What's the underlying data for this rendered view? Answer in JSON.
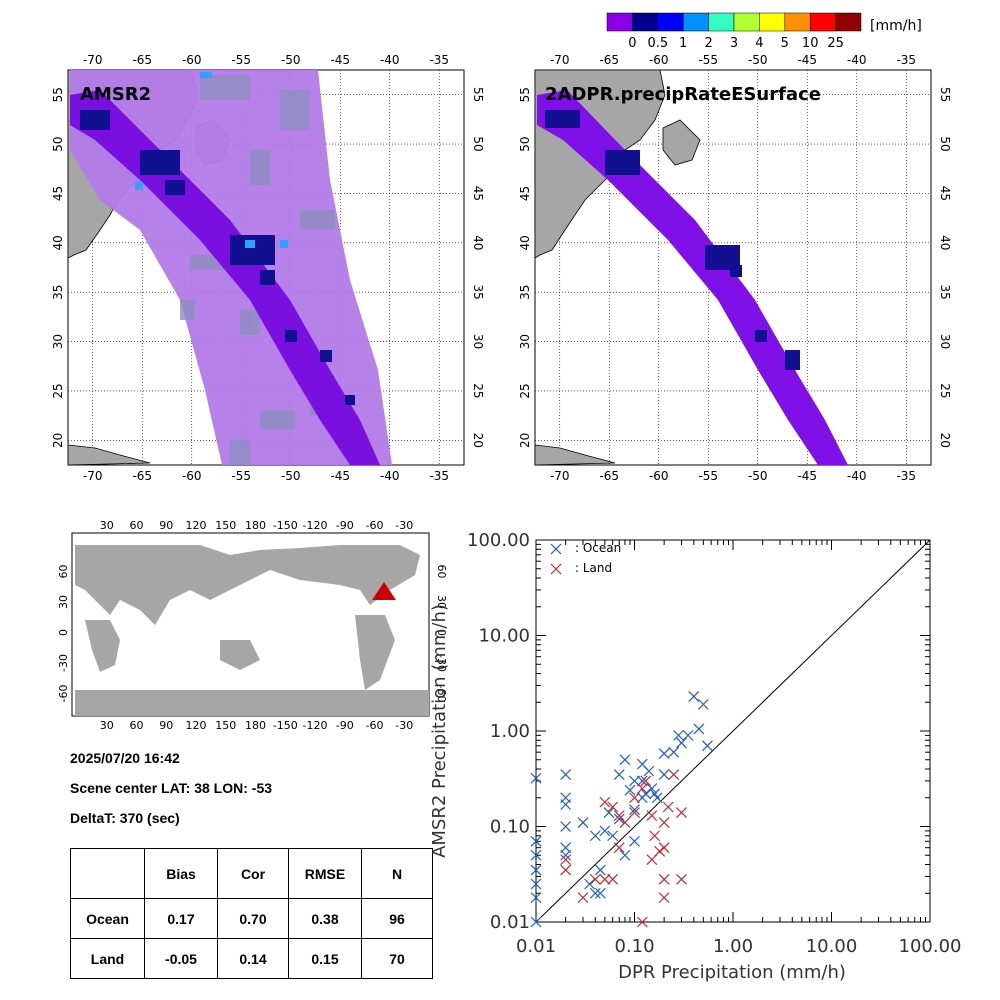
{
  "colorbar": {
    "unit": "[mm/h]",
    "labels": [
      "0",
      "0.5",
      "1",
      "2",
      "3",
      "4",
      "5",
      "10",
      "25"
    ],
    "colors": [
      "#8a00e6",
      "#000090",
      "#0000ff",
      "#0090ff",
      "#30ffc0",
      "#b0ff30",
      "#ffff00",
      "#ff9000",
      "#ff0000",
      "#900000"
    ]
  },
  "maps": [
    {
      "title": "AMSR2",
      "lon_ticks": [
        "-70",
        "-65",
        "-60",
        "-55",
        "-50",
        "-45",
        "-40",
        "-35"
      ],
      "lat_ticks": [
        "20",
        "25",
        "30",
        "35",
        "40",
        "45",
        "50",
        "55"
      ]
    },
    {
      "title": "2ADPR.precipRateESurface",
      "lon_ticks": [
        "-70",
        "-65",
        "-60",
        "-55",
        "-50",
        "-45",
        "-40",
        "-35"
      ],
      "lat_ticks": [
        "20",
        "25",
        "30",
        "35",
        "40",
        "45",
        "50",
        "55"
      ]
    }
  ],
  "world_map": {
    "lon_ticks": [
      "30",
      "60",
      "90",
      "120",
      "150",
      "180",
      "-150",
      "-120",
      "-90",
      "-60",
      "-30"
    ],
    "lat_ticks": [
      "60",
      "30",
      "0",
      "-30",
      "-60"
    ],
    "marker_color": "#cc0000"
  },
  "info": {
    "datetime": "2025/07/20 16:42",
    "scene_center": "Scene center LAT: 38   LON: -53",
    "deltat": "DeltaT:  370 (sec)"
  },
  "stats_table": {
    "headers": [
      "",
      "Bias",
      "Cor",
      "RMSE",
      "N"
    ],
    "rows": [
      {
        "label": "Ocean",
        "bias": "0.17",
        "cor": "0.70",
        "rmse": "0.38",
        "n": "96"
      },
      {
        "label": "Land",
        "bias": "-0.05",
        "cor": "0.14",
        "rmse": "0.15",
        "n": "70"
      }
    ]
  },
  "chart_data": {
    "type": "scatter",
    "xlabel": "DPR Precipitation (mm/h)",
    "ylabel": "AMSR2 Precipitation (mm/h)",
    "xscale": "log",
    "yscale": "log",
    "xlim": [
      0.01,
      100
    ],
    "ylim": [
      0.01,
      100
    ],
    "x_tick_labels": [
      "0.01",
      "0.10",
      "1.00",
      "10.00",
      "100.00"
    ],
    "y_tick_labels": [
      "0.01",
      "0.10",
      "1.00",
      "10.00",
      "100.00"
    ],
    "diagonal": true,
    "legend_position": "top-left",
    "series": [
      {
        "name": ": Ocean",
        "color": "#1a5ad6",
        "marker": "x",
        "points": [
          [
            0.01,
            0.32
          ],
          [
            0.01,
            0.07
          ],
          [
            0.01,
            0.05
          ],
          [
            0.01,
            0.035
          ],
          [
            0.01,
            0.025
          ],
          [
            0.01,
            0.018
          ],
          [
            0.01,
            0.01
          ],
          [
            0.02,
            0.35
          ],
          [
            0.02,
            0.2
          ],
          [
            0.02,
            0.17
          ],
          [
            0.02,
            0.1
          ],
          [
            0.02,
            0.06
          ],
          [
            0.02,
            0.05
          ],
          [
            0.03,
            0.11
          ],
          [
            0.035,
            0.025
          ],
          [
            0.04,
            0.02
          ],
          [
            0.04,
            0.08
          ],
          [
            0.045,
            0.035
          ],
          [
            0.045,
            0.02
          ],
          [
            0.05,
            0.09
          ],
          [
            0.055,
            0.14
          ],
          [
            0.06,
            0.08
          ],
          [
            0.07,
            0.35
          ],
          [
            0.07,
            0.12
          ],
          [
            0.08,
            0.5
          ],
          [
            0.08,
            0.05
          ],
          [
            0.09,
            0.24
          ],
          [
            0.1,
            0.3
          ],
          [
            0.1,
            0.15
          ],
          [
            0.1,
            0.07
          ],
          [
            0.12,
            0.45
          ],
          [
            0.12,
            0.3
          ],
          [
            0.12,
            0.2
          ],
          [
            0.13,
            0.22
          ],
          [
            0.14,
            0.38
          ],
          [
            0.15,
            0.25
          ],
          [
            0.16,
            0.22
          ],
          [
            0.17,
            0.2
          ],
          [
            0.2,
            0.58
          ],
          [
            0.2,
            0.35
          ],
          [
            0.25,
            0.6
          ],
          [
            0.28,
            0.9
          ],
          [
            0.3,
            0.75
          ],
          [
            0.35,
            0.9
          ],
          [
            0.4,
            2.3
          ],
          [
            0.45,
            1.05
          ],
          [
            0.5,
            1.9
          ],
          [
            0.55,
            0.7
          ]
        ]
      },
      {
        "name": ": Land",
        "color": "#c0282c",
        "marker": "x",
        "points": [
          [
            0.02,
            0.045
          ],
          [
            0.02,
            0.035
          ],
          [
            0.03,
            0.018
          ],
          [
            0.04,
            0.028
          ],
          [
            0.05,
            0.028
          ],
          [
            0.06,
            0.028
          ],
          [
            0.05,
            0.18
          ],
          [
            0.06,
            0.16
          ],
          [
            0.07,
            0.13
          ],
          [
            0.08,
            0.11
          ],
          [
            0.1,
            0.14
          ],
          [
            0.1,
            0.2
          ],
          [
            0.12,
            0.25
          ],
          [
            0.13,
            0.3
          ],
          [
            0.15,
            0.13
          ],
          [
            0.15,
            0.045
          ],
          [
            0.16,
            0.08
          ],
          [
            0.18,
            0.055
          ],
          [
            0.2,
            0.06
          ],
          [
            0.2,
            0.11
          ],
          [
            0.22,
            0.16
          ],
          [
            0.2,
            0.028
          ],
          [
            0.25,
            0.35
          ],
          [
            0.3,
            0.028
          ],
          [
            0.3,
            0.14
          ],
          [
            0.2,
            0.018
          ],
          [
            0.12,
            0.01
          ],
          [
            0.07,
            0.06
          ]
        ]
      }
    ]
  }
}
